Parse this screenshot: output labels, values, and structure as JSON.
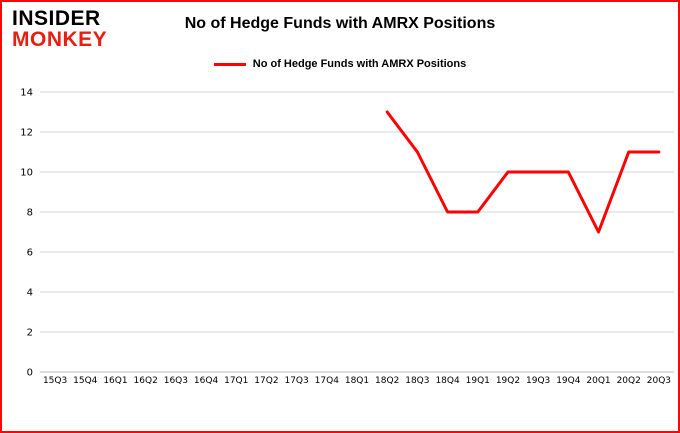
{
  "logo": {
    "line1": "INSIDER",
    "line2": "MONKEY"
  },
  "header": {
    "title": "No of Hedge Funds with AMRX Positions"
  },
  "legend": {
    "label": "No of Hedge Funds with AMRX Positions"
  },
  "colors": {
    "line": "#ff0000",
    "border": "#f90606",
    "grid": "#d6d6d6",
    "axis": "#bbbbbb",
    "text": "#000000",
    "logo_monkey": "#e81e10"
  },
  "chart_data": {
    "type": "line",
    "title": "No of Hedge Funds with AMRX Positions",
    "xlabel": "",
    "ylabel": "",
    "ylim": [
      0,
      14
    ],
    "yticks": [
      0,
      2,
      4,
      6,
      8,
      10,
      12,
      14
    ],
    "grid": true,
    "legend_position": "top",
    "categories": [
      "15Q3",
      "15Q4",
      "16Q1",
      "16Q2",
      "16Q3",
      "16Q4",
      "17Q1",
      "17Q2",
      "17Q3",
      "17Q4",
      "18Q1",
      "18Q2",
      "18Q3",
      "18Q4",
      "19Q1",
      "19Q2",
      "19Q3",
      "19Q4",
      "20Q1",
      "20Q2",
      "20Q3"
    ],
    "series": [
      {
        "name": "No of Hedge Funds with AMRX Positions",
        "color": "#ff0000",
        "values": [
          null,
          null,
          null,
          null,
          null,
          null,
          null,
          null,
          null,
          null,
          null,
          13,
          11,
          8,
          8,
          10,
          10,
          10,
          7,
          11,
          11
        ]
      }
    ]
  }
}
